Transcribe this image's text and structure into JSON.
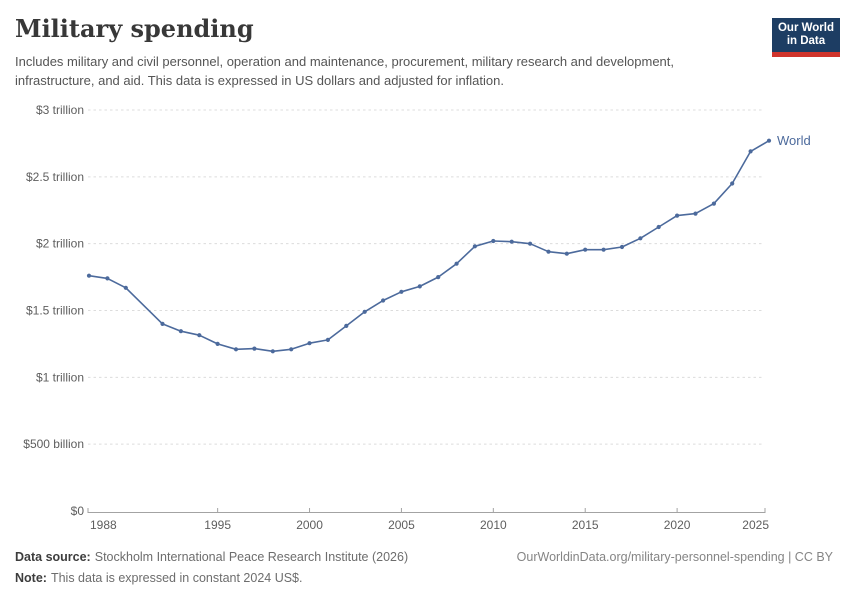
{
  "header": {
    "title": "Military spending",
    "subtitle": "Includes military and civil personnel, operation and maintenance, procurement, military research and development, infrastructure, and aid. This data is expressed in US dollars and adjusted for inflation."
  },
  "logo": {
    "line1": "Our World",
    "line2": "in Data",
    "bg_color": "#1d3d63",
    "accent_color": "#d0342c",
    "text_color": "#ffffff"
  },
  "chart_data": {
    "type": "line",
    "title": "Military spending",
    "xlabel": "",
    "ylabel": "",
    "unit": "constant 2024 US$",
    "xlim": [
      1988,
      2025
    ],
    "ylim": [
      0,
      3
    ],
    "grid": "horizontal-dashed",
    "legend_position": "end-of-line-label",
    "x_ticks": [
      1988,
      1995,
      2000,
      2005,
      2010,
      2015,
      2020,
      2025
    ],
    "y_ticks": [
      {
        "value": 0,
        "label": "$0"
      },
      {
        "value": 0.5,
        "label": "$500 billion"
      },
      {
        "value": 1,
        "label": "$1 trillion"
      },
      {
        "value": 1.5,
        "label": "$1.5 trillion"
      },
      {
        "value": 2,
        "label": "$2 trillion"
      },
      {
        "value": 2.5,
        "label": "$2.5 trillion"
      },
      {
        "value": 3,
        "label": "$3 trillion"
      }
    ],
    "y_unit_note": "values in trillions of US dollars",
    "series": [
      {
        "name": "World",
        "color": "#4c6a9c",
        "x": [
          1988,
          1989,
          1990,
          1991,
          1992,
          1993,
          1994,
          1995,
          1996,
          1997,
          1998,
          1999,
          2000,
          2001,
          2002,
          2003,
          2004,
          2005,
          2006,
          2007,
          2008,
          2009,
          2010,
          2011,
          2012,
          2013,
          2014,
          2015,
          2016,
          2017,
          2018,
          2019,
          2020,
          2021,
          2022,
          2023,
          2024,
          2025
        ],
        "values": [
          1.76,
          1.74,
          1.67,
          null,
          1.4,
          1.345,
          1.315,
          1.25,
          1.21,
          1.215,
          1.195,
          1.21,
          1.255,
          1.28,
          1.385,
          1.49,
          1.575,
          1.64,
          1.68,
          1.75,
          1.85,
          1.98,
          2.02,
          2.015,
          2.0,
          1.94,
          1.925,
          1.955,
          1.955,
          1.975,
          2.04,
          2.125,
          2.21,
          2.225,
          2.3,
          2.45,
          2.69,
          2.77
        ]
      }
    ]
  },
  "footer": {
    "source_label": "Data source:",
    "source_text": "Stockholm International Peace Research Institute (2026)",
    "note_label": "Note:",
    "note_text": "This data is expressed in constant 2024 US$.",
    "citation": "OurWorldinData.org/military-personnel-spending | CC BY"
  }
}
